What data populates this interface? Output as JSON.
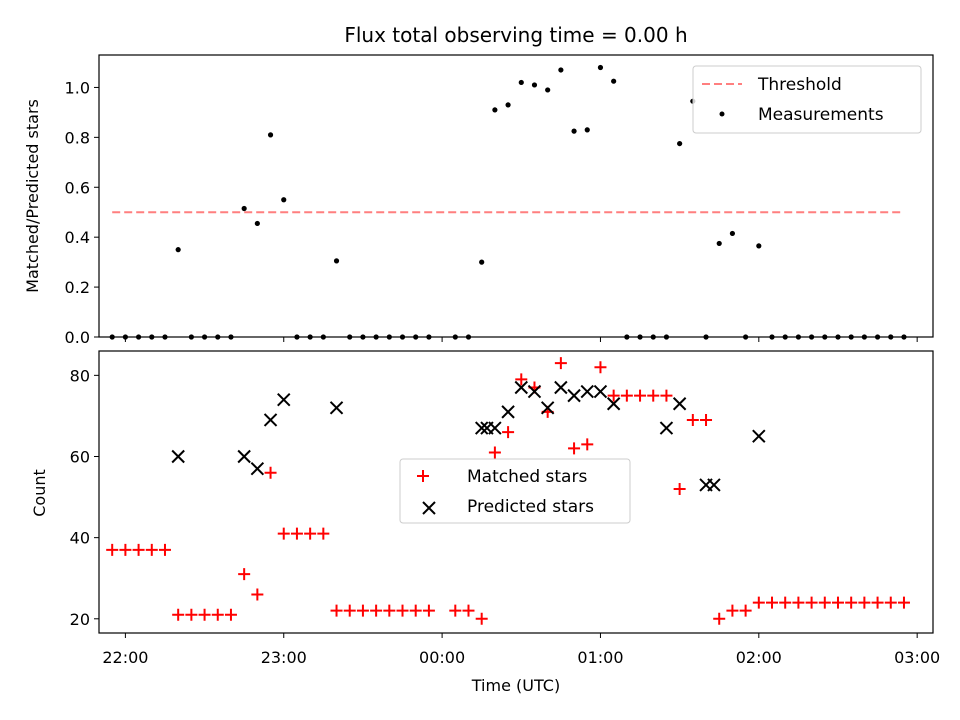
{
  "chart_data": [
    {
      "type": "scatter",
      "title": "Flux total observing time = 0.00 h",
      "xlabel": "",
      "ylabel": "Matched/Predicted stars",
      "xlim": [
        "21:50",
        "03:06"
      ],
      "ylim": [
        0,
        1.13
      ],
      "yticks": [
        "0.0",
        "0.2",
        "0.4",
        "0.6",
        "0.8",
        "1.0"
      ],
      "legend_position": "top-right",
      "threshold": {
        "name": "Threshold",
        "value": 0.5,
        "color": "#ff7f7f",
        "x_range": [
          "21:55",
          "02:55"
        ]
      },
      "series": [
        {
          "name": "Measurements",
          "color": "#000000",
          "x": [
            "21:55",
            "22:00",
            "22:05",
            "22:10",
            "22:15",
            "22:20",
            "22:25",
            "22:30",
            "22:35",
            "22:40",
            "22:45",
            "22:50",
            "22:55",
            "23:00",
            "23:05",
            "23:10",
            "23:15",
            "23:20",
            "23:25",
            "23:30",
            "23:35",
            "23:40",
            "23:45",
            "23:50",
            "23:55",
            "00:05",
            "00:10",
            "00:15",
            "00:20",
            "00:25",
            "00:30",
            "00:35",
            "00:40",
            "00:45",
            "00:50",
            "00:55",
            "01:00",
            "01:05",
            "01:10",
            "01:15",
            "01:20",
            "01:25",
            "01:30",
            "01:35",
            "01:40",
            "01:45",
            "01:50",
            "01:55",
            "02:00",
            "02:05",
            "02:10",
            "02:15",
            "02:20",
            "02:25",
            "02:30",
            "02:35",
            "02:40",
            "02:45",
            "02:50",
            "02:55"
          ],
          "y": [
            0,
            0,
            0,
            0,
            0,
            0.35,
            0,
            0,
            0,
            0,
            0.515,
            0.455,
            0.81,
            0.55,
            0,
            0,
            0,
            0.305,
            0,
            0,
            0,
            0,
            0,
            0,
            0,
            0,
            0,
            0.3,
            0.91,
            0.93,
            1.02,
            1.01,
            0.99,
            1.07,
            0.825,
            0.83,
            1.08,
            1.025,
            0,
            0,
            0,
            0,
            0.775,
            0.945,
            0,
            0.375,
            0.415,
            0,
            0.365,
            0,
            0,
            0,
            0,
            0,
            0,
            0,
            0,
            0,
            0,
            0
          ]
        }
      ]
    },
    {
      "type": "scatter",
      "title": "",
      "xlabel": "Time (UTC)",
      "ylabel": "Count",
      "xlim": [
        "21:50",
        "03:06"
      ],
      "ylim": [
        16.5,
        86
      ],
      "xticks": [
        "22:00",
        "23:00",
        "00:00",
        "01:00",
        "02:00",
        "03:00"
      ],
      "yticks": [
        "20",
        "40",
        "60",
        "80"
      ],
      "legend_position": "center",
      "series": [
        {
          "name": "Matched stars",
          "color": "#ff0000",
          "marker": "plus",
          "x": [
            "21:55",
            "22:00",
            "22:05",
            "22:10",
            "22:15",
            "22:20",
            "22:25",
            "22:30",
            "22:35",
            "22:40",
            "22:45",
            "22:50",
            "22:55",
            "23:00",
            "23:05",
            "23:10",
            "23:15",
            "23:20",
            "23:25",
            "23:30",
            "23:35",
            "23:40",
            "23:45",
            "23:50",
            "23:55",
            "00:05",
            "00:10",
            "00:15",
            "00:20",
            "00:25",
            "00:30",
            "00:35",
            "00:40",
            "00:45",
            "00:50",
            "00:55",
            "01:00",
            "01:05",
            "01:10",
            "01:15",
            "01:20",
            "01:25",
            "01:30",
            "01:35",
            "01:40",
            "01:45",
            "01:50",
            "01:55",
            "02:00",
            "02:05",
            "02:10",
            "02:15",
            "02:20",
            "02:25",
            "02:30",
            "02:35",
            "02:40",
            "02:45",
            "02:50",
            "02:55"
          ],
          "y": [
            37,
            37,
            37,
            37,
            37,
            21,
            21,
            21,
            21,
            21,
            31,
            26,
            56,
            41,
            41,
            41,
            41,
            22,
            22,
            22,
            22,
            22,
            22,
            22,
            22,
            22,
            22,
            20,
            61,
            66,
            79,
            77,
            71,
            83,
            62,
            63,
            82,
            75,
            75,
            75,
            75,
            75,
            52,
            69,
            69,
            20,
            22,
            22,
            24,
            24,
            24,
            24,
            24,
            24,
            24,
            24,
            24,
            24,
            24,
            24
          ]
        },
        {
          "name": "Predicted stars",
          "color": "#000000",
          "marker": "x",
          "x": [
            "22:20",
            "22:45",
            "22:50",
            "22:55",
            "23:00",
            "23:20",
            "00:15",
            "00:17",
            "00:20",
            "00:25",
            "00:30",
            "00:35",
            "00:40",
            "00:45",
            "00:50",
            "00:55",
            "01:00",
            "01:05",
            "01:25",
            "01:30",
            "01:40",
            "01:43",
            "02:00"
          ],
          "y": [
            60,
            60,
            57,
            69,
            74,
            72,
            67,
            67,
            67,
            71,
            77,
            76,
            72,
            77,
            75,
            76,
            76,
            73,
            67,
            73,
            53,
            53,
            65
          ]
        }
      ]
    }
  ]
}
